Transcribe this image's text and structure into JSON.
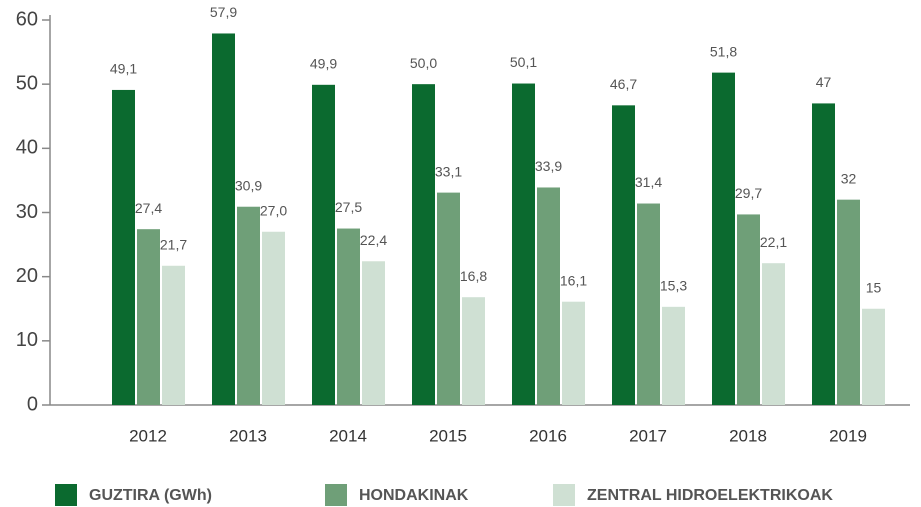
{
  "chart_data": {
    "type": "bar",
    "categories": [
      "2012",
      "2013",
      "2014",
      "2015",
      "2016",
      "2017",
      "2018",
      "2019"
    ],
    "series": [
      {
        "name": "GUZTIRA (GWh)",
        "color": "#0b6a2f",
        "values": [
          49.1,
          57.9,
          49.9,
          50.0,
          50.1,
          46.7,
          51.8,
          47
        ],
        "value_labels": [
          "49,1",
          "57,9",
          "49,9",
          "50,0",
          "50,1",
          "46,7",
          "51,8",
          "47"
        ]
      },
      {
        "name": "HONDAKINAK",
        "color": "#6f9f78",
        "values": [
          27.4,
          30.9,
          27.5,
          33.1,
          33.9,
          31.4,
          29.7,
          32
        ],
        "value_labels": [
          "27,4",
          "30,9",
          "27,5",
          "33,1",
          "33,9",
          "31,4",
          "29,7",
          "32"
        ]
      },
      {
        "name": "ZENTRAL HIDROELEKTRIKOAK",
        "color": "#cfe0d3",
        "values": [
          21.7,
          27.0,
          22.4,
          16.8,
          16.1,
          15.3,
          22.1,
          15
        ],
        "value_labels": [
          "21,7",
          "27,0",
          "22,4",
          "16,8",
          "16,1",
          "15,3",
          "22,1",
          "15"
        ]
      }
    ],
    "ylim": [
      0,
      60
    ],
    "yticks": [
      0,
      10,
      20,
      30,
      40,
      50,
      60
    ],
    "legend": "bottom"
  }
}
